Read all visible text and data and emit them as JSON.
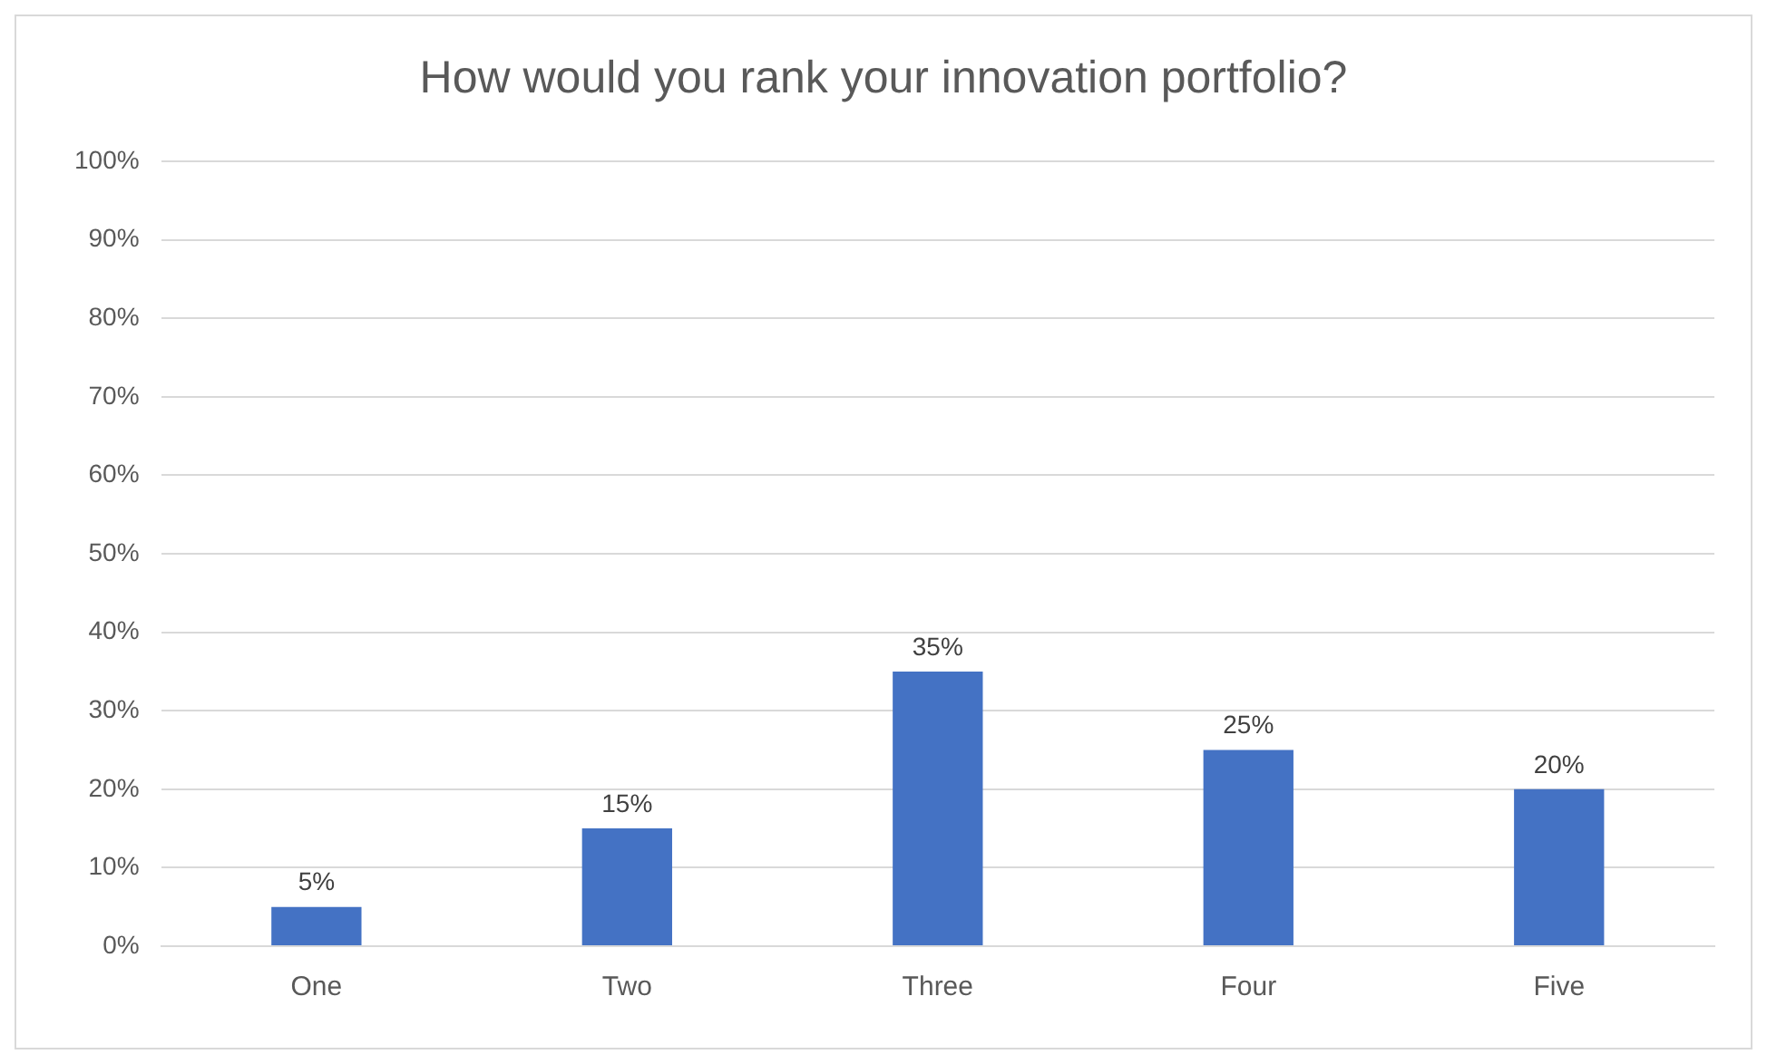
{
  "chart_data": {
    "type": "bar",
    "title": "How would you rank your innovation portfolio?",
    "categories": [
      "One",
      "Two",
      "Three",
      "Four",
      "Five"
    ],
    "values": [
      5,
      15,
      35,
      25,
      20
    ],
    "value_labels": [
      "5%",
      "15%",
      "35%",
      "25%",
      "20%"
    ],
    "color": "#4472c4",
    "ylim": [
      0,
      100
    ],
    "yticks": [
      {
        "value": 0,
        "label": "0%"
      },
      {
        "value": 10,
        "label": "10%"
      },
      {
        "value": 20,
        "label": "20%"
      },
      {
        "value": 30,
        "label": "30%"
      },
      {
        "value": 40,
        "label": "40%"
      },
      {
        "value": 50,
        "label": "50%"
      },
      {
        "value": 60,
        "label": "60%"
      },
      {
        "value": 70,
        "label": "70%"
      },
      {
        "value": 80,
        "label": "80%"
      },
      {
        "value": 90,
        "label": "90%"
      },
      {
        "value": 100,
        "label": "100%"
      }
    ],
    "grid": "y",
    "legend": false
  }
}
